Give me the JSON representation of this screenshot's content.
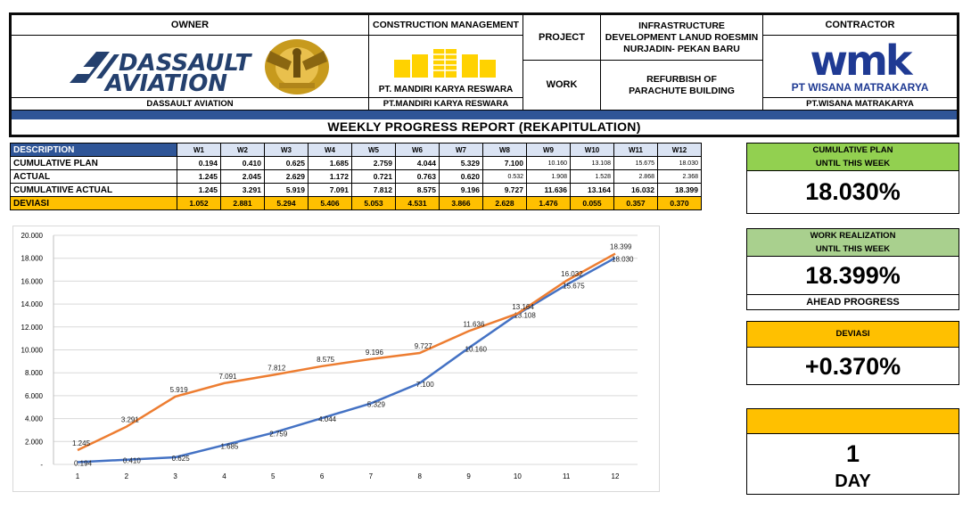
{
  "header": {
    "owner_label": "OWNER",
    "owner_logo_text_1": "DASSAULT",
    "owner_logo_text_2": "AVIATION",
    "owner_name": "DASSAULT AVIATION",
    "cm_label": "CONSTRUCTION MANAGEMENT",
    "cm_logo_text": "PT. MANDIRI KARYA RESWARA",
    "cm_name": "PT.MANDIRI KARYA RESWARA",
    "project_label": "PROJECT",
    "project_value": "INFRASTRUCTURE DEVELOPMENT LANUD ROESMIN NURJADIN- PEKAN BARU",
    "work_label": "WORK",
    "work_value": "REFURBISH OF PARACHUTE BUILDING",
    "contractor_label": "CONTRACTOR",
    "contractor_logo_text": "wmk",
    "contractor_logo_sub": "PT WISANA MATRAKARYA",
    "contractor_name": "PT.WISANA MATRAKARYA",
    "report_title": "WEEKLY PROGRESS REPORT (REKAPITULATION)"
  },
  "table": {
    "desc_header": "DESCRIPTION",
    "weeks": [
      "W1",
      "W2",
      "W3",
      "W4",
      "W5",
      "W6",
      "W7",
      "W8",
      "W9",
      "W10",
      "W11",
      "W12"
    ],
    "rows": [
      {
        "label": "CUMULATIVE PLAN",
        "values": [
          "0.194",
          "0.410",
          "0.625",
          "1.685",
          "2.759",
          "4.044",
          "5.329",
          "7.100",
          "10.160",
          "13.108",
          "15.675",
          "18.030"
        ]
      },
      {
        "label": "ACTUAL",
        "values": [
          "1.245",
          "2.045",
          "2.629",
          "1.172",
          "0.721",
          "0.763",
          "0.620",
          "0.532",
          "1.908",
          "1.528",
          "2.868",
          "2.368"
        ]
      },
      {
        "label": "CUMULATIIVE ACTUAL",
        "values": [
          "1.245",
          "3.291",
          "5.919",
          "7.091",
          "7.812",
          "8.575",
          "9.196",
          "9.727",
          "11.636",
          "13.164",
          "16.032",
          "18.399"
        ]
      },
      {
        "label": "DEVIASI",
        "values": [
          "1.052",
          "2.881",
          "5.294",
          "5.406",
          "5.053",
          "4.531",
          "3.866",
          "2.628",
          "1.476",
          "0.055",
          "0.357",
          "0.370"
        ]
      }
    ]
  },
  "chart_data": {
    "type": "line",
    "x": [
      1,
      2,
      3,
      4,
      5,
      6,
      7,
      8,
      9,
      10,
      11,
      12
    ],
    "y_ticks": [
      "20.000",
      "18.000",
      "16.000",
      "14.000",
      "12.000",
      "10.000",
      "8.000",
      "6.000",
      "4.000",
      "2.000",
      "-"
    ],
    "ylim": [
      0,
      20
    ],
    "grid": true,
    "series": [
      {
        "values": [
          0.194,
          0.41,
          0.625,
          1.685,
          2.759,
          4.044,
          5.329,
          7.1,
          10.16,
          13.108,
          15.675,
          18.03
        ],
        "labels": [
          "0.194",
          "0.410",
          "0.625",
          "1.685",
          "2.759",
          "4.044",
          "5.329",
          "7.100",
          "10.160",
          "13.108",
          "15.675",
          "18.030"
        ],
        "color": "#4472c4"
      },
      {
        "values": [
          1.245,
          3.291,
          5.919,
          7.091,
          7.812,
          8.575,
          9.196,
          9.727,
          11.636,
          13.164,
          16.032,
          18.399
        ],
        "labels": [
          "1.245",
          "3.291",
          "5.919",
          "7.091",
          "7.812",
          "8.575",
          "9.196",
          "9.727",
          "11.636",
          "13.164",
          "16.032",
          "18.399"
        ],
        "color": "#ed7d31"
      }
    ]
  },
  "panels": {
    "plan": {
      "line1": "CUMULATIVE PLAN",
      "line2": "UNTIL THIS WEEK",
      "value": "18.030%",
      "color": "#92d050"
    },
    "realization": {
      "line1": "WORK REALIZATION",
      "line2": "UNTIL THIS WEEK",
      "value": "18.399%",
      "footer": "AHEAD PROGRESS",
      "color": "#a9d08e"
    },
    "deviasi": {
      "line1": "DEVIASI",
      "value": "+0.370%",
      "color": "#ffc000"
    },
    "day": {
      "value": "1",
      "unit": "DAY",
      "color": "#ffc000"
    }
  }
}
